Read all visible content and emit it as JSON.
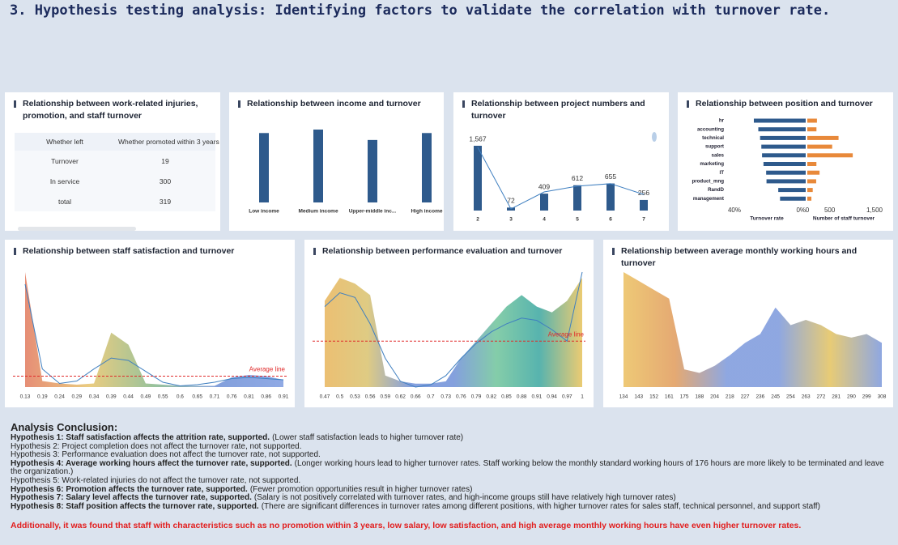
{
  "title": "3. Hypothesis testing analysis: Identifying factors to validate the correlation with turnover rate.",
  "table_panel": {
    "title": "Relationship between work-related injuries, promotion, and staff turnover",
    "columns": [
      "Whether left",
      "Whether promoted within 3 years"
    ],
    "rows": [
      [
        "Turnover",
        19
      ],
      [
        "In service",
        300
      ],
      [
        "total",
        319
      ]
    ]
  },
  "chart_data": [
    {
      "type": "bar",
      "title": "Relationship between income and turnover",
      "categories": [
        "Low income",
        "Medium income",
        "Upper-middle inc...",
        "High income"
      ],
      "values": [
        0.2,
        0.21,
        0.18,
        0.2
      ],
      "color": "#2e5a8c"
    },
    {
      "type": "bar",
      "title": "Relationship between project numbers and turnover",
      "categories": [
        "2",
        "3",
        "4",
        "5",
        "6",
        "7"
      ],
      "values": [
        1567,
        72,
        409,
        612,
        655,
        256
      ],
      "value_labels": [
        "1,567",
        "72",
        "409",
        "612",
        "655",
        "256"
      ],
      "line_values": [
        1530,
        40,
        450,
        590,
        650,
        390
      ],
      "color": "#2e5a8c",
      "line_color": "#3f7fc0"
    },
    {
      "type": "butterfly",
      "title": "Relationship between position and turnover",
      "categories": [
        "hr",
        "accounting",
        "technical",
        "support",
        "sales",
        "marketing",
        "IT",
        "product_mng",
        "RandD",
        "management"
      ],
      "series": [
        {
          "name": "Turnover rate",
          "color": "#2e5a8c",
          "values": [
            29.1,
            26.6,
            25.6,
            24.9,
            24.5,
            23.7,
            22.2,
            22.0,
            15.4,
            14.4
          ]
        },
        {
          "name": "Number of staff turnover",
          "color": "#e8893a",
          "axis": "x2",
          "values": [
            215,
            204,
            697,
            555,
            1014,
            203,
            273,
            198,
            121,
            91
          ]
        }
      ],
      "xlim": [
        40,
        0
      ],
      "xticks": [
        {
          "value": 40,
          "label": "40%"
        },
        {
          "value": 0,
          "label": "0%"
        }
      ],
      "x2lim": [
        0,
        1500
      ],
      "x2ticks": [
        0,
        500,
        {
          "value": 1500,
          "label": "1,500"
        }
      ]
    },
    {
      "type": "area",
      "title": "Relationship between staff satisfaction and turnover",
      "categories": [
        "0.13",
        "0.19",
        "0.24",
        "0.29",
        "0.34",
        "0.39",
        "0.44",
        "0.49",
        "0.55",
        "0.6",
        "0.65",
        "0.71",
        "0.76",
        "0.81",
        "0.86",
        "0.91"
      ],
      "values": [
        95,
        5,
        3,
        2,
        3,
        45,
        35,
        3,
        2,
        1,
        1,
        1,
        8,
        10,
        9,
        6
      ],
      "line_values": [
        85,
        15,
        3,
        5,
        15,
        24,
        22,
        13,
        4,
        1,
        2,
        4,
        7,
        8,
        7,
        6
      ],
      "average": {
        "value": 9,
        "label": "Average line"
      },
      "colors": [
        "#e27a5e",
        "#e6c36a",
        "#86b88a",
        "#6d8fd6",
        "#7d9be0"
      ],
      "line_color": "#3f7fc0"
    },
    {
      "type": "area",
      "title": "Relationship between performance evaluation and turnover",
      "categories": [
        "0.47",
        "0.5",
        "0.53",
        "0.56",
        "0.59",
        "0.62",
        "0.66",
        "0.7",
        "0.73",
        "0.76",
        "0.79",
        "0.82",
        "0.85",
        "0.88",
        "0.91",
        "0.94",
        "0.97",
        "1"
      ],
      "values": [
        75,
        95,
        90,
        80,
        10,
        5,
        3,
        3,
        5,
        25,
        40,
        55,
        70,
        80,
        70,
        65,
        75,
        95
      ],
      "line_values": [
        70,
        82,
        78,
        55,
        25,
        5,
        0,
        2,
        10,
        25,
        38,
        48,
        55,
        60,
        58,
        50,
        40,
        100
      ],
      "average": {
        "value": 40,
        "label": "Average line"
      },
      "colors": [
        "#e8b45a",
        "#d9c26e",
        "#6f8fd8",
        "#6f8fd8",
        "#6fc49a",
        "#3aa6a0",
        "#e8c25a"
      ],
      "line_color": "#3f7fc0"
    },
    {
      "type": "area",
      "title": "Relationship between average monthly working hours and turnover",
      "categories": [
        "134",
        "143",
        "152",
        "161",
        "175",
        "188",
        "204",
        "218",
        "227",
        "236",
        "245",
        "254",
        "263",
        "272",
        "281",
        "290",
        "299",
        "308"
      ],
      "values": [
        65,
        60,
        55,
        50,
        10,
        8,
        12,
        18,
        25,
        30,
        45,
        35,
        38,
        35,
        30,
        28,
        30,
        25
      ],
      "colors": [
        "#ebbf5e",
        "#e09a5a",
        "#7b98dc",
        "#7b98dc",
        "#e3c25e",
        "#7b98dc"
      ]
    }
  ],
  "conclusion": {
    "heading": "Analysis Conclusion:",
    "items": [
      {
        "lead": "Hypothesis 1: Staff satisfaction affects the attrition rate, supported.",
        "detail": "(Lower staff satisfaction leads to higher turnover rate)"
      },
      {
        "text": "Hypothesis 2: Project completion does not affect the turnover rate, not supported."
      },
      {
        "text": "Hypothesis 3: Performance evaluation does not affect the turnover rate, not supported."
      },
      {
        "lead": "Hypothesis 4: Average working hours affect the turnover rate, supported.",
        "detail": "(Longer working hours lead to higher turnover rates. Staff working below the monthly standard working hours of 176 hours are more likely to be terminated and leave the organization.)"
      },
      {
        "text": "Hypothesis 5: Work-related injuries do not affect the turnover rate, not supported."
      },
      {
        "lead": "Hypothesis 6: Promotion affects the turnover rate, supported.",
        "detail": "(Fewer promotion opportunities result in higher turnover rates)"
      },
      {
        "lead": "Hypothesis 7: Salary level affects the turnover rate, supported.",
        "detail": "(Salary is not positively correlated with turnover rates, and high-income groups still have relatively high turnover rates)"
      },
      {
        "lead": "Hypothesis 8: Staff position affects the turnover rate, supported.",
        "detail": "(There are significant differences in turnover rates among different positions, with higher turnover rates for sales staff, technical personnel, and support staff)"
      }
    ],
    "note": "Additionally, it was found that staff with characteristics such as no promotion within 3 years, low salary, low satisfaction, and high average monthly working hours have even higher turnover rates."
  }
}
